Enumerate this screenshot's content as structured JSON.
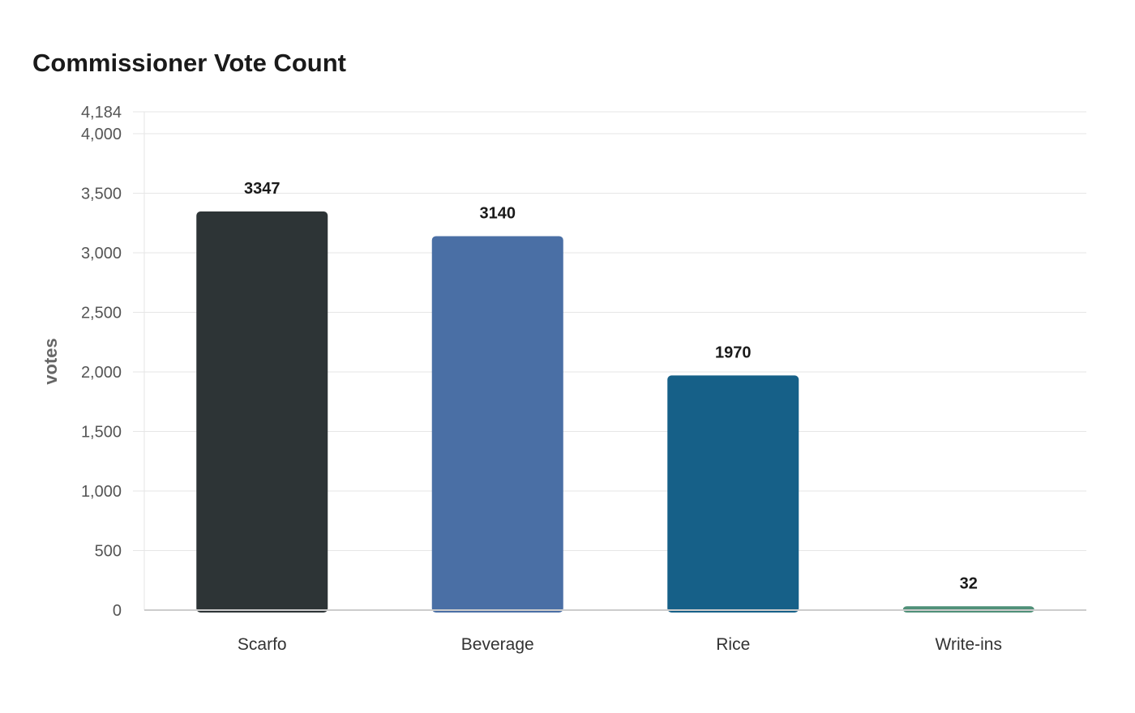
{
  "chart_data": {
    "type": "bar",
    "title": "Commissioner Vote Count",
    "ylabel": "votes",
    "xlabel": "",
    "categories": [
      "Scarfo",
      "Beverage",
      "Rice",
      "Write-ins"
    ],
    "values": [
      3347,
      3140,
      1970,
      32
    ],
    "value_labels": [
      "3347",
      "3140",
      "1970",
      "32"
    ],
    "colors": [
      "#2d3436",
      "#4a6fa5",
      "#166088",
      "#4f9078"
    ],
    "ylim": [
      0,
      4184
    ],
    "yticks": [
      0,
      500,
      1000,
      1500,
      2000,
      2500,
      3000,
      3500,
      4000,
      4184
    ],
    "ytick_labels": [
      "0",
      "500",
      "1,000",
      "1,500",
      "2,000",
      "2,500",
      "3,000",
      "3,500",
      "4,000",
      "4,184"
    ],
    "grid": "horizontal",
    "legend": "none"
  }
}
